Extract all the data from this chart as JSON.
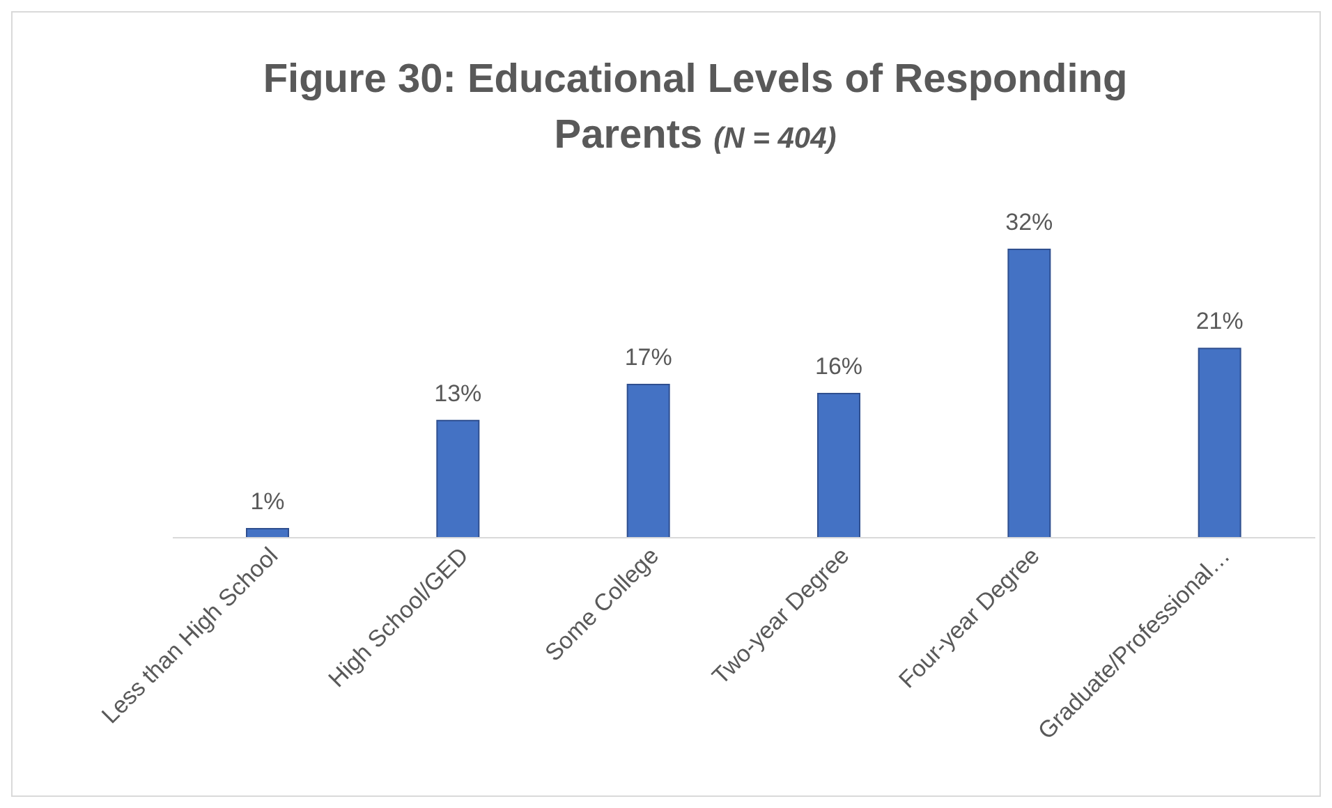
{
  "chart_data": {
    "type": "bar",
    "title": "Figure 30: Educational Levels of Responding Parents",
    "subtitle": "(N = 404)",
    "categories": [
      "Less than High School",
      "High School/GED",
      "Some College",
      "Two-year Degree",
      "Four-year Degree",
      "Graduate/Professional…"
    ],
    "values": [
      1,
      13,
      17,
      16,
      32,
      21
    ],
    "value_labels": [
      "1%",
      "13%",
      "17%",
      "16%",
      "32%",
      "21%"
    ],
    "color": "#4472c4",
    "grid": false,
    "legend": false
  }
}
